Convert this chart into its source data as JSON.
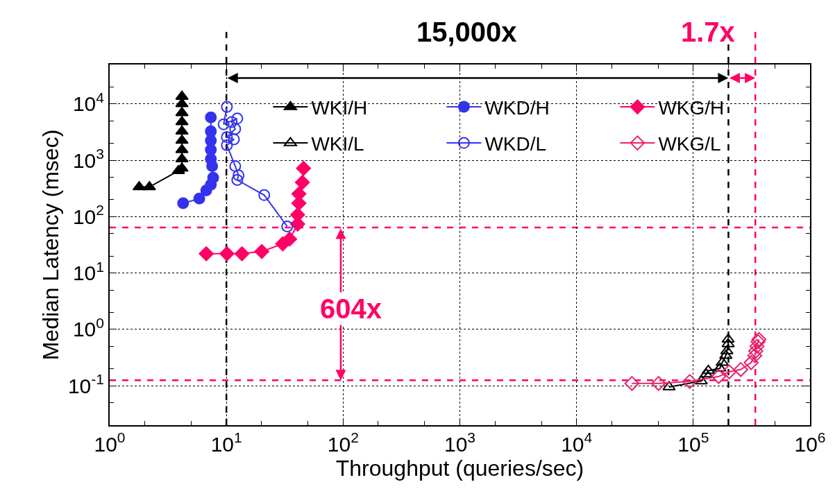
{
  "chart_data": {
    "type": "line",
    "xlabel": "Throughput (queries/sec)",
    "ylabel": "Median Latency (msec)",
    "log": "xy",
    "grid": true,
    "legend": "top",
    "xlim": [
      1,
      1000000
    ],
    "ylim": [
      0.02,
      50000
    ],
    "xticks": [
      {
        "value": 1,
        "label": "10$^{0}$"
      },
      {
        "value": 10,
        "label": "10$^{1}$"
      },
      {
        "value": 100,
        "label": "10$^{2}$"
      },
      {
        "value": 1000,
        "label": "10$^{3}$"
      },
      {
        "value": 10000,
        "label": "10$^{4}$"
      },
      {
        "value": 100000,
        "label": "10$^{5}$"
      },
      {
        "value": 1000000,
        "label": "10$^{6}$"
      }
    ],
    "yticks": [
      {
        "value": 0.1,
        "label": "10$^{-1}$"
      },
      {
        "value": 1,
        "label": "10$^{0}$"
      },
      {
        "value": 10,
        "label": "10$^{1}$"
      },
      {
        "value": 100,
        "label": "10$^{2}$"
      },
      {
        "value": 1000,
        "label": "10$^{3}$"
      },
      {
        "value": 10000,
        "label": "10$^{4}$"
      }
    ],
    "annotations": [
      "15,000x",
      "1.7x",
      "604x"
    ],
    "ref_lines": [
      {
        "axis": "x",
        "value": 10,
        "color": "#000000",
        "line_style": "dashed"
      },
      {
        "axis": "x",
        "value": 200000,
        "color": "#000000",
        "line_style": "dashed"
      },
      {
        "axis": "x",
        "value": 340000,
        "color": "#ff0066",
        "line_style": "dashed"
      },
      {
        "axis": "y",
        "value": 64,
        "color": "#ff0066",
        "line_style": "dashed"
      },
      {
        "axis": "y",
        "value": 0.125,
        "color": "#ff0066",
        "line_style": "dashed"
      }
    ],
    "series": [
      {
        "name": "WKI/H",
        "color": "#000000",
        "marker": "triangle",
        "x": [
          1.79,
          2.19,
          3.88,
          4.16,
          4.16,
          4.16,
          4.16,
          4.16,
          4.16,
          4.16,
          4.16,
          4.16
        ],
        "values": [
          336,
          336,
          650,
          718,
          1050,
          1530,
          2240,
          3260,
          4780,
          6930,
          10000,
          13500
        ]
      },
      {
        "name": "WKD/H",
        "color": "#3333ee",
        "marker": "circle",
        "x": [
          4.26,
          5.86,
          6.72,
          7.36,
          7.7,
          7.55,
          7.36,
          7.36,
          7.36,
          7.36,
          7.36
        ],
        "values": [
          173,
          209,
          292,
          370,
          490,
          789,
          1050,
          1530,
          2240,
          3260,
          5750
        ]
      },
      {
        "name": "WKG/H",
        "color": "#ff0066",
        "marker": "diamond",
        "x": [
          6.72,
          10.1,
          13.6,
          20.1,
          30.4,
          34.8,
          40.8,
          40.8,
          41.8,
          41.8,
          44.8,
          45.8
        ],
        "values": [
          22,
          22,
          22,
          24.1,
          33,
          40,
          74,
          108,
          173,
          253,
          406,
          718
        ]
      },
      {
        "name": "WKI/L",
        "color": "#000000",
        "marker": "triangle-open",
        "x": [
          62000,
          117000,
          129000,
          134500,
          169000,
          177000,
          190000,
          194000,
          199000,
          199000
        ],
        "values": [
          0.095,
          0.121,
          0.16,
          0.185,
          0.204,
          0.258,
          0.343,
          0.414,
          0.551,
          0.665
        ]
      },
      {
        "name": "WKD/L",
        "color": "#3333ee",
        "marker": "circle-open",
        "x": [
          10.1,
          9.47,
          12.4,
          11.1,
          11.9,
          10.1,
          11.6,
          10.1,
          11.9,
          12.7,
          12.4,
          21.1,
          33.2
        ],
        "values": [
          8850,
          4350,
          5510,
          4770,
          3590,
          2580,
          2350,
          1850,
          789,
          541,
          447,
          241,
          67
        ]
      },
      {
        "name": "WKG/L",
        "color": "#e6246e",
        "marker": "diamond-open",
        "x": [
          29800,
          50400,
          93300,
          165000,
          203000,
          255000,
          313000,
          336000,
          343000,
          351000,
          359000,
          365000
        ],
        "values": [
          0.11,
          0.11,
          0.119,
          0.146,
          0.177,
          0.194,
          0.258,
          0.343,
          0.414,
          0.501,
          0.605,
          0.665
        ]
      }
    ]
  }
}
